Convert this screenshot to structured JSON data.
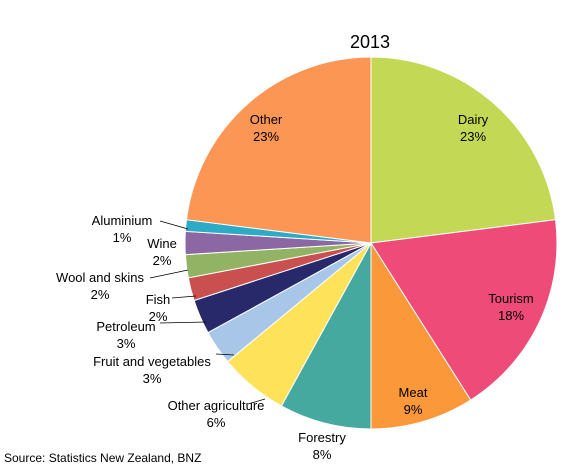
{
  "chart_data": {
    "type": "pie",
    "title": "2013",
    "source": "Source: Statistics New Zealand, BNZ",
    "unit": "%",
    "slices": [
      {
        "label": "Dairy",
        "value": 23,
        "display": "23%",
        "color": "#c3d955"
      },
      {
        "label": "Tourism",
        "value": 18,
        "display": "18%",
        "color": "#ee4b79"
      },
      {
        "label": "Meat",
        "value": 9,
        "display": "9%",
        "color": "#fb983a"
      },
      {
        "label": "Forestry",
        "value": 8,
        "display": "8%",
        "color": "#45a9a0"
      },
      {
        "label": "Other agriculture",
        "value": 6,
        "display": "6%",
        "color": "#fee35a"
      },
      {
        "label": "Fruit and vegetables",
        "value": 3,
        "display": "3%",
        "color": "#a7c6e8"
      },
      {
        "label": "Petroleum",
        "value": 3,
        "display": "3%",
        "color": "#27296a"
      },
      {
        "label": "Fish",
        "value": 2,
        "display": "2%",
        "color": "#c9504e"
      },
      {
        "label": "Wool and skins",
        "value": 2,
        "display": "2%",
        "color": "#93b364"
      },
      {
        "label": "Wine",
        "value": 2,
        "display": "2%",
        "color": "#8b68a3"
      },
      {
        "label": "Aluminium",
        "value": 1,
        "display": "1%",
        "color": "#2cabc6"
      },
      {
        "label": "Other",
        "value": 23,
        "display": "23%",
        "color": "#fb9654"
      }
    ]
  }
}
